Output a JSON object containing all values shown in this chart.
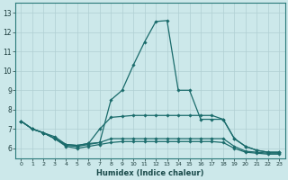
{
  "xlabel": "Humidex (Indice chaleur)",
  "bg_color": "#cce8ea",
  "grid_color": "#b0cfd2",
  "line_color": "#1a6b6b",
  "xlim": [
    -0.5,
    23.5
  ],
  "ylim": [
    5.5,
    13.5
  ],
  "yticks": [
    6,
    7,
    8,
    9,
    10,
    11,
    12,
    13
  ],
  "xticks": [
    0,
    1,
    2,
    3,
    4,
    5,
    6,
    7,
    8,
    9,
    10,
    11,
    12,
    13,
    14,
    15,
    16,
    17,
    18,
    19,
    20,
    21,
    22,
    23
  ],
  "lines": [
    {
      "x": [
        0,
        1,
        2,
        3,
        4,
        5,
        6,
        7,
        8,
        9,
        10,
        11,
        12,
        13,
        14,
        15,
        16,
        17,
        18,
        19,
        20,
        21,
        22,
        23
      ],
      "y": [
        7.4,
        7.0,
        6.8,
        6.6,
        6.2,
        6.15,
        6.25,
        6.3,
        8.5,
        9.0,
        10.3,
        11.5,
        12.55,
        12.6,
        9.0,
        9.0,
        7.5,
        7.5,
        7.5,
        6.5,
        6.1,
        5.9,
        5.8,
        5.8
      ]
    },
    {
      "x": [
        0,
        1,
        2,
        3,
        4,
        5,
        6,
        7,
        8,
        9,
        10,
        11,
        12,
        13,
        14,
        15,
        16,
        17,
        18,
        19,
        20,
        21,
        22,
        23
      ],
      "y": [
        7.4,
        7.0,
        6.8,
        6.5,
        6.2,
        6.15,
        6.25,
        7.0,
        7.6,
        7.65,
        7.7,
        7.7,
        7.7,
        7.7,
        7.7,
        7.7,
        7.7,
        7.7,
        7.5,
        6.5,
        6.1,
        5.9,
        5.8,
        5.8
      ]
    },
    {
      "x": [
        0,
        1,
        2,
        3,
        4,
        5,
        6,
        7,
        8,
        9,
        10,
        11,
        12,
        13,
        14,
        15,
        16,
        17,
        18,
        19,
        20,
        21,
        22,
        23
      ],
      "y": [
        7.4,
        7.0,
        6.8,
        6.5,
        6.15,
        6.1,
        6.2,
        6.3,
        6.5,
        6.5,
        6.5,
        6.5,
        6.5,
        6.5,
        6.5,
        6.5,
        6.5,
        6.5,
        6.5,
        6.1,
        5.85,
        5.8,
        5.75,
        5.75
      ]
    },
    {
      "x": [
        0,
        1,
        2,
        3,
        4,
        5,
        6,
        7,
        8,
        9,
        10,
        11,
        12,
        13,
        14,
        15,
        16,
        17,
        18,
        19,
        20,
        21,
        22,
        23
      ],
      "y": [
        7.4,
        7.0,
        6.8,
        6.5,
        6.1,
        6.0,
        6.1,
        6.2,
        6.3,
        6.35,
        6.35,
        6.35,
        6.35,
        6.35,
        6.35,
        6.35,
        6.35,
        6.35,
        6.3,
        6.0,
        5.8,
        5.75,
        5.7,
        5.7
      ]
    }
  ]
}
